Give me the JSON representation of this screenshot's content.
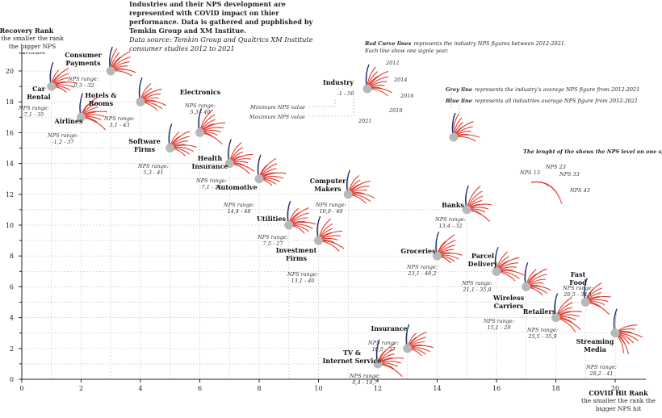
{
  "header": {
    "title": "Industries and their NPS development are represented with COVID impact on thier performance. Data is gathered and pupblished by Temkin Group and XM Institue.",
    "source": "Data source: Temkin Group and Qualtrics XM Institute consumer studies 2012 to 2021"
  },
  "legend": {
    "red_curves_bold": "Red Curve lines",
    "red_curves_text": "represents the industry NPS figures between 2012-2021.",
    "red_curves_sub": "Each line show one signle year.",
    "grey_bold": "Grey line",
    "grey_text": "represents the industry's average NPS figure from 2012-2021",
    "blue_bold": "Blue line",
    "blue_text": "represents all industries average NPS figure from 2012-2021",
    "length_text": "The lenght of the shows the NPS level on one specific year",
    "example_industry": "Industry",
    "example_range": "-1 - 50",
    "min_label": "Minimum NPS value",
    "max_label": "Maximum NPS value",
    "years": [
      "2012",
      "2014",
      "2016",
      "2018",
      "2021"
    ],
    "nps_ticks": [
      "NPS 13",
      "NPS 23",
      "NPS 33",
      "NPS 43"
    ]
  },
  "chart_data": {
    "type": "scatter",
    "xlabel": "COVID Hit Rank",
    "xlabel_sub": "the smaller the rank the bigger NPS hit",
    "ylabel": "Recovery Rank",
    "ylabel_sub": "the smaller the rank the bigger NPS recovery",
    "xlim": [
      0,
      20
    ],
    "ylim": [
      0,
      20
    ],
    "x_ticks": [
      0,
      2,
      4,
      6,
      8,
      10,
      12,
      14,
      16,
      18,
      20
    ],
    "y_ticks": [
      0,
      2,
      4,
      6,
      8,
      10,
      12,
      14,
      16,
      18,
      20
    ],
    "range_prefix": "NPS range:",
    "colors": {
      "curves": "#e03a2f",
      "average": "#b8b8b8",
      "all_average": "#1f2a6e",
      "grid": "#cccccc"
    },
    "points": [
      {
        "name": "Car Rental",
        "x": 1,
        "y": 19,
        "nps_range": "7,1 - 35"
      },
      {
        "name": "Consumer Payments",
        "x": 3,
        "y": 20,
        "nps_range": "-0,3 - 32"
      },
      {
        "name": "Airlines",
        "x": 2,
        "y": 17,
        "nps_range": "-1,2 - 37"
      },
      {
        "name": "Hotels & Rooms",
        "x": 4,
        "y": 18,
        "nps_range": "3,1 - 43"
      },
      {
        "name": "Electronics",
        "x": 6,
        "y": 16,
        "nps_range": "5,3 - 40"
      },
      {
        "name": "Software Firms",
        "x": 5,
        "y": 15,
        "nps_range": "5,3 - 41"
      },
      {
        "name": "Health Insurance",
        "x": 7,
        "y": 14,
        "nps_range": "7,1 - 31"
      },
      {
        "name": "Automotive",
        "x": 8,
        "y": 13,
        "nps_range": "14,4 - 48"
      },
      {
        "name": "Computer Makers",
        "x": 11,
        "y": 12,
        "nps_range": "10,9 - 40"
      },
      {
        "name": "Banks",
        "x": 15,
        "y": 11,
        "nps_range": "13,4 - 32"
      },
      {
        "name": "Utilities",
        "x": 9,
        "y": 10,
        "nps_range": "7,5 - 27"
      },
      {
        "name": "Investment Firms",
        "x": 10,
        "y": 9,
        "nps_range": "13,1 - 40"
      },
      {
        "name": "Groceries",
        "x": 14,
        "y": 8,
        "nps_range": "23,1 - 40,2"
      },
      {
        "name": "Parcel Delivery",
        "x": 16,
        "y": 7,
        "nps_range": "21,1 - 35,8"
      },
      {
        "name": "Fast Food",
        "x": 19,
        "y": 5,
        "nps_range": "20,5 - 34,1"
      },
      {
        "name": "Wireless Carriers",
        "x": 17,
        "y": 6,
        "nps_range": "15,1 - 29"
      },
      {
        "name": "Retailers",
        "x": 18,
        "y": 4,
        "nps_range": "25,5 - 35,9"
      },
      {
        "name": "Insurance",
        "x": 13,
        "y": 2,
        "nps_range": "10,5 - 37"
      },
      {
        "name": "Streaming Media",
        "x": 20,
        "y": 3,
        "nps_range": "28,2 - 41"
      },
      {
        "name": "TV & Internet Service",
        "x": 12,
        "y": 1,
        "nps_range": "0,4 - 19,7"
      }
    ]
  }
}
